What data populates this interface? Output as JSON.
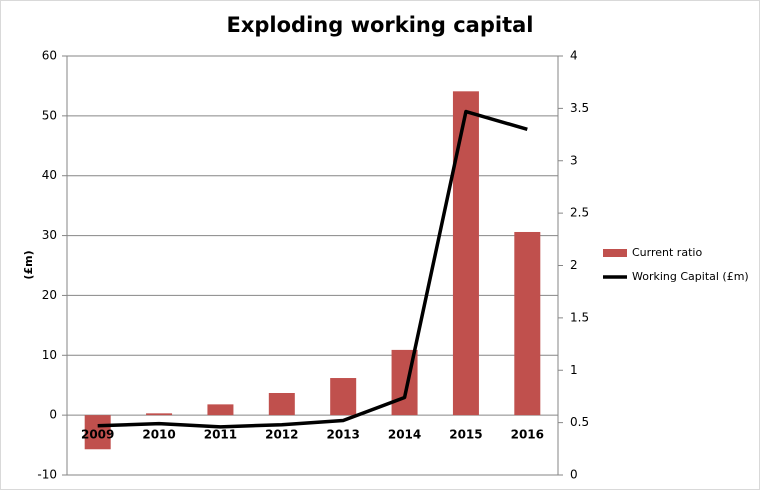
{
  "chart_data": {
    "type": "bar",
    "title": "Exploding working capital",
    "y_label": "(£m)",
    "categories": [
      "2009",
      "2010",
      "2011",
      "2012",
      "2013",
      "2014",
      "2015",
      "2016"
    ],
    "series": [
      {
        "name": "Current ratio",
        "type": "bar",
        "color": "#c0504d",
        "values": [
          -5.7,
          0.3,
          1.8,
          3.7,
          6.2,
          10.9,
          54.1,
          30.6
        ]
      },
      {
        "name": "Working Capital (£m)",
        "type": "line",
        "axis": "y2",
        "color": "#000000",
        "values": [
          0.47,
          0.49,
          0.46,
          0.48,
          0.52,
          0.74,
          3.47,
          3.3
        ]
      }
    ],
    "ylim": [
      -10,
      60
    ],
    "yticks": [
      -10,
      0,
      10,
      20,
      30,
      40,
      50,
      60
    ],
    "y2lim": [
      0,
      4
    ],
    "y2ticks": [
      0,
      0.5,
      1,
      1.5,
      2,
      2.5,
      3,
      3.5,
      4
    ],
    "grid": true,
    "legend": "right"
  }
}
